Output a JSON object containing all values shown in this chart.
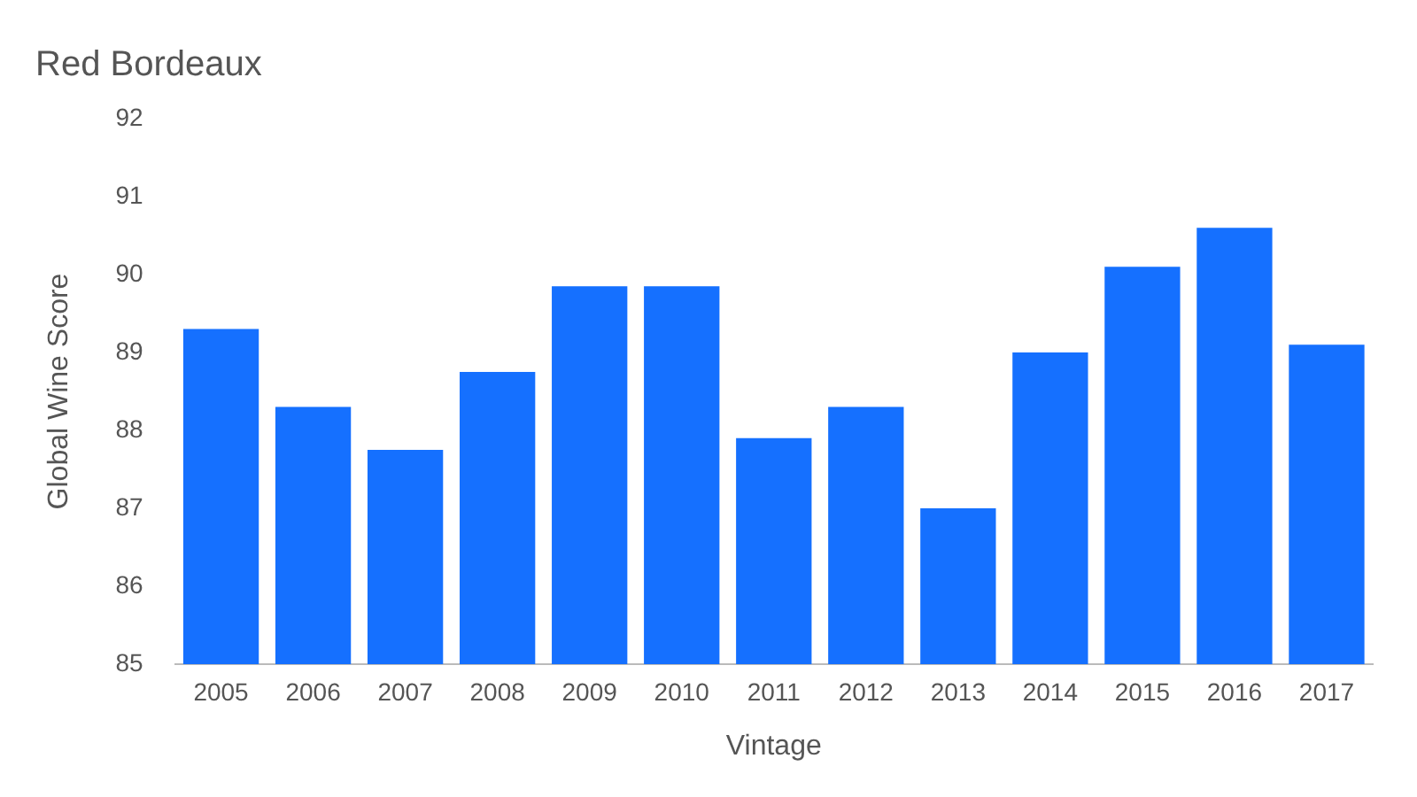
{
  "chart_data": {
    "type": "bar",
    "title": "Red Bordeaux",
    "xlabel": "Vintage",
    "ylabel": "Global Wine Score",
    "categories": [
      "2005",
      "2006",
      "2007",
      "2008",
      "2009",
      "2010",
      "2011",
      "2012",
      "2013",
      "2014",
      "2015",
      "2016",
      "2017"
    ],
    "values": [
      89.3,
      88.3,
      87.75,
      88.75,
      89.85,
      89.85,
      87.9,
      88.3,
      87.0,
      89.0,
      90.1,
      90.6,
      89.1
    ],
    "color": "#1570ff",
    "ylim": [
      85,
      92
    ],
    "yticks": [
      85,
      86,
      87,
      88,
      89,
      90,
      91,
      92
    ],
    "grid": false
  }
}
